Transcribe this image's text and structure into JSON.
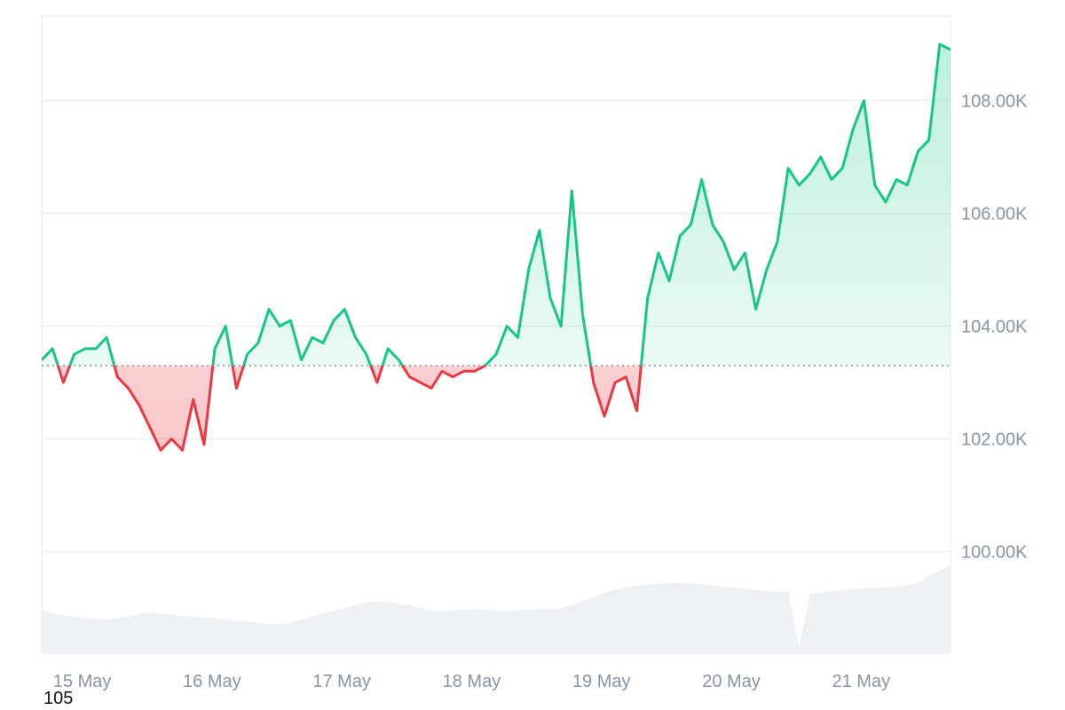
{
  "chart_data": {
    "type": "line",
    "baseline": 103300,
    "x_start": "2025-05-14T18:00",
    "x_end": "2025-05-21T18:00",
    "ylim": [
      98200,
      109500
    ],
    "y_ticks": [
      {
        "value": 100000,
        "label": "100.00K"
      },
      {
        "value": 102000,
        "label": "102.00K"
      },
      {
        "value": 104000,
        "label": "104.00K"
      },
      {
        "value": 106000,
        "label": "106.00K"
      },
      {
        "value": 108000,
        "label": "108.00K"
      }
    ],
    "x_ticks": [
      {
        "value": "2025-05-15T00:00",
        "label": "15 May"
      },
      {
        "value": "2025-05-16T00:00",
        "label": "16 May"
      },
      {
        "value": "2025-05-17T00:00",
        "label": "17 May"
      },
      {
        "value": "2025-05-18T00:00",
        "label": "18 May"
      },
      {
        "value": "2025-05-19T00:00",
        "label": "19 May"
      },
      {
        "value": "2025-05-20T00:00",
        "label": "20 May"
      },
      {
        "value": "2025-05-21T00:00",
        "label": "21 May"
      }
    ],
    "series": [
      {
        "x": [
          "2025-05-14T18:00",
          "2025-05-14T20:00",
          "2025-05-14T22:00",
          "2025-05-15T00:00",
          "2025-05-15T02:00",
          "2025-05-15T04:00",
          "2025-05-15T06:00",
          "2025-05-15T08:00",
          "2025-05-15T10:00",
          "2025-05-15T12:00",
          "2025-05-15T14:00",
          "2025-05-15T16:00",
          "2025-05-15T18:00",
          "2025-05-15T20:00",
          "2025-05-15T22:00",
          "2025-05-16T00:00",
          "2025-05-16T02:00",
          "2025-05-16T04:00",
          "2025-05-16T06:00",
          "2025-05-16T08:00",
          "2025-05-16T10:00",
          "2025-05-16T12:00",
          "2025-05-16T14:00",
          "2025-05-16T16:00",
          "2025-05-16T18:00",
          "2025-05-16T20:00",
          "2025-05-16T22:00",
          "2025-05-17T00:00",
          "2025-05-17T02:00",
          "2025-05-17T04:00",
          "2025-05-17T06:00",
          "2025-05-17T08:00",
          "2025-05-17T10:00",
          "2025-05-17T12:00",
          "2025-05-17T14:00",
          "2025-05-17T16:00",
          "2025-05-17T18:00",
          "2025-05-17T20:00",
          "2025-05-17T22:00",
          "2025-05-18T00:00",
          "2025-05-18T02:00",
          "2025-05-18T04:00",
          "2025-05-18T06:00",
          "2025-05-18T08:00",
          "2025-05-18T10:00",
          "2025-05-18T12:00",
          "2025-05-18T14:00",
          "2025-05-18T16:00",
          "2025-05-18T18:00",
          "2025-05-18T20:00",
          "2025-05-18T22:00",
          "2025-05-19T00:00",
          "2025-05-19T02:00",
          "2025-05-19T04:00",
          "2025-05-19T06:00",
          "2025-05-19T08:00",
          "2025-05-19T10:00",
          "2025-05-19T12:00",
          "2025-05-19T14:00",
          "2025-05-19T16:00",
          "2025-05-19T18:00",
          "2025-05-19T20:00",
          "2025-05-19T22:00",
          "2025-05-20T00:00",
          "2025-05-20T02:00",
          "2025-05-20T04:00",
          "2025-05-20T06:00",
          "2025-05-20T08:00",
          "2025-05-20T10:00",
          "2025-05-20T12:00",
          "2025-05-20T14:00",
          "2025-05-20T16:00",
          "2025-05-20T18:00",
          "2025-05-20T20:00",
          "2025-05-20T22:00",
          "2025-05-21T00:00",
          "2025-05-21T02:00",
          "2025-05-21T04:00",
          "2025-05-21T06:00",
          "2025-05-21T08:00",
          "2025-05-21T10:00",
          "2025-05-21T12:00",
          "2025-05-21T14:00",
          "2025-05-21T16:00",
          "2025-05-21T18:00"
        ],
        "values": [
          103400,
          103600,
          103000,
          103500,
          103600,
          103600,
          103800,
          103100,
          102900,
          102600,
          102200,
          101800,
          102000,
          101800,
          102700,
          101900,
          103600,
          104000,
          102900,
          103500,
          103700,
          104300,
          104000,
          104100,
          103400,
          103800,
          103700,
          104100,
          104300,
          103800,
          103500,
          103000,
          103600,
          103400,
          103100,
          103000,
          102900,
          103200,
          103100,
          103200,
          103200,
          103300,
          103500,
          104000,
          103800,
          105000,
          105700,
          104500,
          104000,
          106400,
          104200,
          103000,
          102400,
          103000,
          103100,
          102500,
          104500,
          105300,
          104800,
          105600,
          105800,
          106600,
          105800,
          105500,
          105000,
          105300,
          104300,
          105000,
          105500,
          106800,
          106500,
          106700,
          107000,
          106600,
          106800,
          107500,
          108000,
          106500,
          106200,
          106600,
          106500,
          107100,
          107300,
          109000,
          108900
        ]
      }
    ],
    "volume": {
      "values": [
        98950,
        98900,
        98870,
        98850,
        98830,
        98810,
        98800,
        98820,
        98850,
        98900,
        98920,
        98900,
        98880,
        98860,
        98850,
        98830,
        98820,
        98800,
        98780,
        98760,
        98740,
        98720,
        98720,
        98750,
        98800,
        98850,
        98900,
        98950,
        99000,
        99050,
        99100,
        99120,
        99100,
        99080,
        99060,
        99000,
        98950,
        98950,
        98960,
        98970,
        98980,
        98970,
        98960,
        98950,
        98960,
        98970,
        98980,
        98990,
        99000,
        99050,
        99120,
        99200,
        99270,
        99330,
        99370,
        99400,
        99420,
        99430,
        99440,
        99450,
        99440,
        99420,
        99400,
        99380,
        99360,
        99340,
        99320,
        99300,
        99280,
        99300,
        98300,
        99250,
        99280,
        99300,
        99320,
        99340,
        99350,
        99360,
        99370,
        99380,
        99400,
        99450,
        99560,
        99660,
        99760
      ]
    }
  },
  "footer": {
    "corner_text": "105"
  }
}
